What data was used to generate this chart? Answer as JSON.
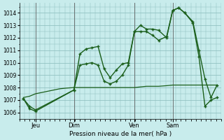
{
  "title": "Pression niveau de la mer( hPa )",
  "bg_color": "#c8ecec",
  "grid_color": "#88bbbb",
  "line_color": "#1a5e1a",
  "ylim": [
    1005.5,
    1014.8
  ],
  "yticks": [
    1006,
    1007,
    1008,
    1009,
    1010,
    1011,
    1012,
    1013,
    1014
  ],
  "day_labels": [
    "Jeu",
    "Dim",
    "Ven",
    "Sam"
  ],
  "day_positions": [
    0.08,
    0.27,
    0.57,
    0.76
  ],
  "xlim": [
    0,
    1.0
  ],
  "series1_x": [
    0.02,
    0.05,
    0.08,
    0.27,
    0.3,
    0.33,
    0.36,
    0.39,
    0.42,
    0.45,
    0.48,
    0.51,
    0.54,
    0.57,
    0.6,
    0.63,
    0.66,
    0.69,
    0.73,
    0.76,
    0.79,
    0.82,
    0.86,
    0.89,
    0.92,
    0.95,
    0.98
  ],
  "series1_y": [
    1007.1,
    1006.3,
    1006.1,
    1007.8,
    1010.7,
    1011.1,
    1011.2,
    1011.3,
    1009.5,
    1008.8,
    1009.4,
    1009.9,
    1010.0,
    1012.5,
    1013.0,
    1012.7,
    1012.7,
    1012.6,
    1012.0,
    1014.2,
    1014.4,
    1014.0,
    1013.3,
    1011.0,
    1008.7,
    1007.2,
    1008.2
  ],
  "series2_x": [
    0.02,
    0.05,
    0.08,
    0.27,
    0.3,
    0.33,
    0.36,
    0.39,
    0.42,
    0.45,
    0.48,
    0.51,
    0.54,
    0.57,
    0.6,
    0.63,
    0.66,
    0.69,
    0.73,
    0.76,
    0.79,
    0.82,
    0.86,
    0.89,
    0.92,
    0.95,
    0.98
  ],
  "series2_y": [
    1007.1,
    1006.5,
    1006.2,
    1007.8,
    1009.8,
    1009.9,
    1010.0,
    1009.8,
    1008.5,
    1008.3,
    1008.5,
    1009.0,
    1009.8,
    1012.5,
    1012.5,
    1012.5,
    1012.2,
    1011.8,
    1012.1,
    1014.2,
    1014.4,
    1014.0,
    1013.2,
    1010.5,
    1006.5,
    1007.0,
    1007.2
  ],
  "series3_x": [
    0.02,
    0.05,
    0.08,
    0.11,
    0.14,
    0.17,
    0.2,
    0.23,
    0.27,
    0.3,
    0.33,
    0.36,
    0.39,
    0.42,
    0.45,
    0.48,
    0.51,
    0.54,
    0.57,
    0.6,
    0.63,
    0.66,
    0.69,
    0.73,
    0.76,
    0.79,
    0.82,
    0.86,
    0.89,
    0.92,
    0.95,
    0.98
  ],
  "series3_y": [
    1007.2,
    1007.3,
    1007.5,
    1007.6,
    1007.7,
    1007.8,
    1007.9,
    1007.95,
    1008.0,
    1008.0,
    1008.0,
    1008.0,
    1008.0,
    1008.0,
    1008.0,
    1008.0,
    1008.0,
    1008.0,
    1008.0,
    1008.05,
    1008.1,
    1008.1,
    1008.1,
    1008.15,
    1008.2,
    1008.2,
    1008.2,
    1008.2,
    1008.2,
    1008.2,
    1008.2,
    1008.2
  ]
}
